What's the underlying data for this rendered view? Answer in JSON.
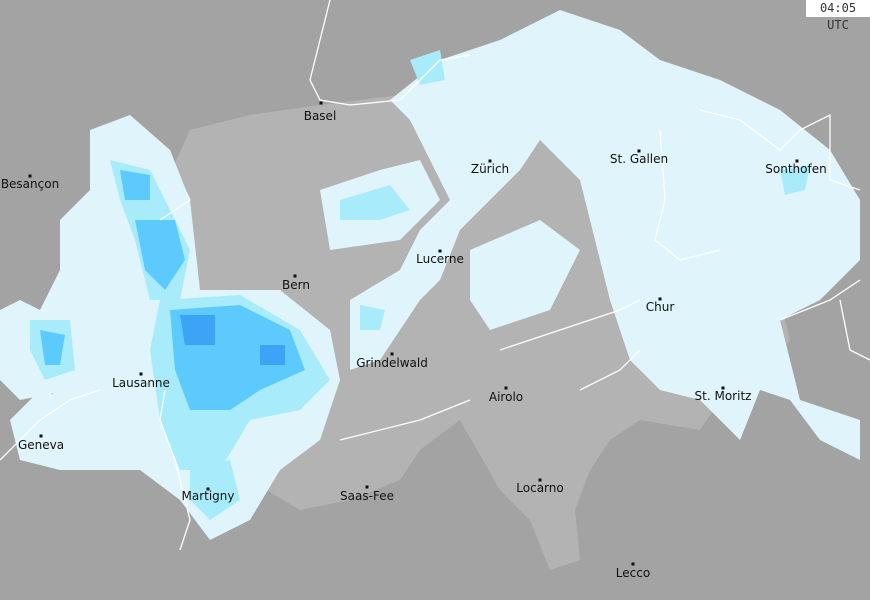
{
  "timestamp": "04:05 UTC",
  "colors": {
    "background": "#a3a3a3",
    "switzerland": "#b3b3b3",
    "precip_light": "#e0f4fc",
    "precip_moderate": "#a8ecfc",
    "precip_medium": "#5ccafc",
    "precip_heavy": "#3ca4f4",
    "borders": "#ffffff"
  },
  "cities": [
    {
      "name": "Basel"
    },
    {
      "name": "Zürich"
    },
    {
      "name": "St. Gallen"
    },
    {
      "name": "Sonthofen"
    },
    {
      "name": "Besançon"
    },
    {
      "name": "Lucerne"
    },
    {
      "name": "Bern"
    },
    {
      "name": "Chur"
    },
    {
      "name": "Grindelwald"
    },
    {
      "name": "Lausanne"
    },
    {
      "name": "Airolo"
    },
    {
      "name": "St. Moritz"
    },
    {
      "name": "Geneva"
    },
    {
      "name": "Martigny"
    },
    {
      "name": "Saas-Fee"
    },
    {
      "name": "Locarno"
    },
    {
      "name": "Lecco"
    }
  ]
}
